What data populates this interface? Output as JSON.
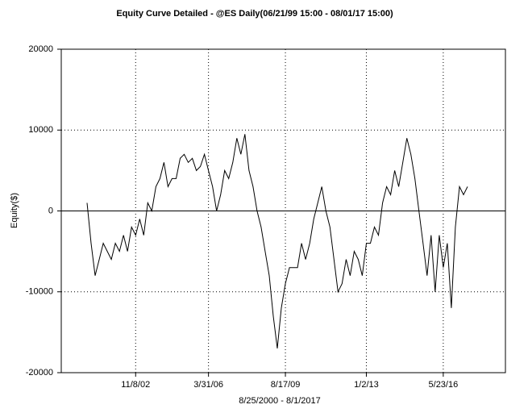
{
  "chart_data": {
    "type": "line",
    "title": "Equity Curve Detailed - @ES Daily(06/21/99 15:00 - 08/01/17 15:00)",
    "xlabel": "8/25/2000 - 8/1/2017",
    "ylabel": "Equity($)",
    "categories": [
      null,
      null,
      null,
      null,
      null,
      null,
      null,
      null,
      null,
      null,
      null,
      null,
      "11/8/02",
      null,
      null,
      null,
      null,
      null,
      null,
      null,
      null,
      null,
      null,
      null,
      null,
      null,
      null,
      null,
      null,
      null,
      "3/31/06",
      null,
      null,
      null,
      null,
      null,
      null,
      null,
      null,
      null,
      null,
      null,
      null,
      null,
      null,
      null,
      null,
      null,
      null,
      "8/17/09",
      null,
      null,
      null,
      null,
      null,
      null,
      null,
      null,
      null,
      null,
      null,
      null,
      null,
      null,
      null,
      null,
      null,
      null,
      null,
      "1/2/13",
      null,
      null,
      null,
      null,
      null,
      null,
      null,
      null,
      null,
      null,
      null,
      null,
      null,
      null,
      null,
      null,
      null,
      null,
      "5/23/16",
      null,
      null,
      null,
      null,
      null,
      null
    ],
    "series": [
      {
        "name": "Equity",
        "color": "#000000",
        "values": [
          1000,
          -4000,
          -8000,
          -6000,
          -4000,
          -5000,
          -6000,
          -4000,
          -5000,
          -3000,
          -5000,
          -2000,
          -3000,
          -1000,
          -3000,
          1000,
          0,
          3000,
          4000,
          6000,
          3000,
          4000,
          4000,
          6500,
          7000,
          6000,
          6500,
          5000,
          5500,
          7000,
          5000,
          3000,
          0,
          2000,
          5000,
          4000,
          6000,
          9000,
          7000,
          9500,
          5000,
          3000,
          0,
          -2000,
          -5000,
          -8000,
          -13000,
          -17000,
          -12000,
          -9000,
          -7000,
          -7000,
          -7000,
          -4000,
          -6000,
          -4000,
          -1000,
          1000,
          3000,
          0,
          -2000,
          -6000,
          -10000,
          -9000,
          -6000,
          -8000,
          -5000,
          -6000,
          -8000,
          -4000,
          -4000,
          -2000,
          -3000,
          1000,
          3000,
          2000,
          5000,
          3000,
          6000,
          9000,
          7000,
          4000,
          0,
          -4000,
          -8000,
          -3000,
          -10000,
          -3000,
          -7000,
          -4000,
          -12000,
          -2000,
          3000,
          2000,
          3000
        ]
      }
    ],
    "ylim": [
      -20000,
      20000
    ],
    "yticks": [
      -20000,
      -10000,
      0,
      10000,
      20000
    ],
    "grid": true
  }
}
